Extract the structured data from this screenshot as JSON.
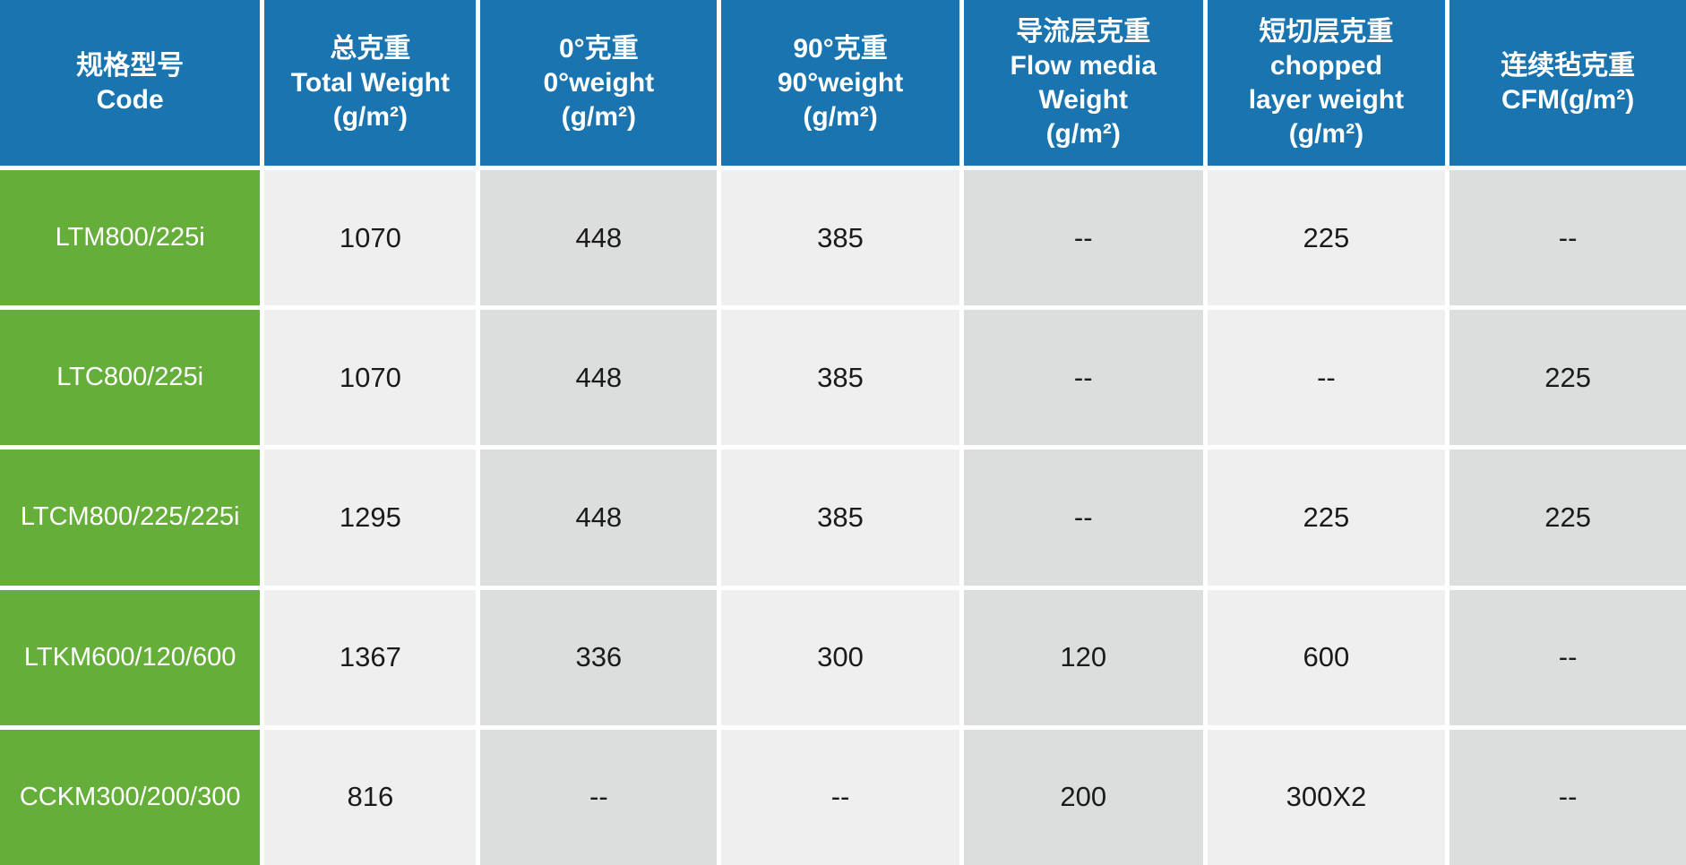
{
  "colors": {
    "header_bg": "#1974af",
    "header_text": "#ffffff",
    "code_bg": "#66ae3a",
    "code_text": "#ffffff",
    "cell_light": "#efefef",
    "cell_dark": "#dcdddd",
    "value_text": "#1a1a1a",
    "gap": "#ffffff"
  },
  "chart_data": {
    "type": "table",
    "title": "",
    "columns": [
      {
        "key": "code",
        "lines": [
          "规格型号",
          "Code"
        ]
      },
      {
        "key": "total-weight",
        "lines": [
          "总克重",
          "Total Weight",
          "(g/m²)"
        ]
      },
      {
        "key": "0-weight",
        "lines": [
          "0°克重",
          "0°weight",
          "(g/m²)"
        ]
      },
      {
        "key": "90-weight",
        "lines": [
          "90°克重",
          "90°weight",
          "(g/m²)"
        ]
      },
      {
        "key": "flow-media-weight",
        "lines": [
          "导流层克重",
          "Flow media",
          "Weight",
          "(g/m²)"
        ]
      },
      {
        "key": "chopped-layer-weight",
        "lines": [
          "短切层克重",
          "chopped",
          "layer weight",
          "(g/m²)"
        ]
      },
      {
        "key": "cfm",
        "lines": [
          "连续毡克重",
          "CFM(g/m²)"
        ]
      }
    ],
    "rows": [
      {
        "code": "LTM800/225i",
        "values": [
          "1070",
          "448",
          "385",
          "--",
          "225",
          "--"
        ]
      },
      {
        "code": "LTC800/225i",
        "values": [
          "1070",
          "448",
          "385",
          "--",
          "--",
          "225"
        ]
      },
      {
        "code": "LTCM800/225/225i",
        "values": [
          "1295",
          "448",
          "385",
          "--",
          "225",
          "225"
        ]
      },
      {
        "code": "LTKM600/120/600",
        "values": [
          "1367",
          "336",
          "300",
          "120",
          "600",
          "--"
        ]
      },
      {
        "code": "CCKM300/200/300",
        "values": [
          "816",
          "--",
          "--",
          "200",
          "300X2",
          "--"
        ]
      }
    ]
  }
}
